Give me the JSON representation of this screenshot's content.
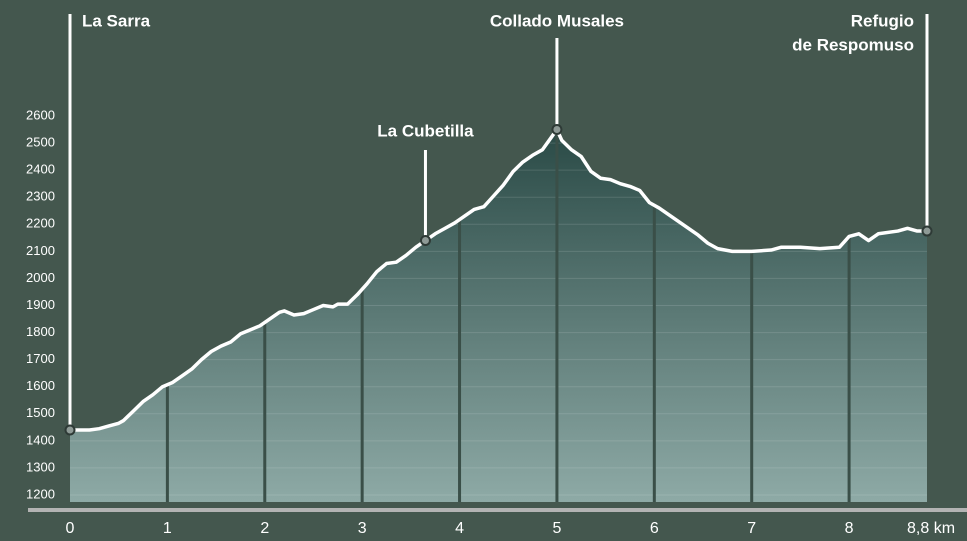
{
  "chart_data": {
    "type": "area",
    "x": [
      0,
      0.2,
      0.3,
      0.4,
      0.5,
      0.55,
      0.65,
      0.75,
      0.85,
      0.95,
      1.05,
      1.15,
      1.25,
      1.35,
      1.45,
      1.55,
      1.65,
      1.75,
      1.85,
      1.95,
      2.05,
      2.15,
      2.2,
      2.3,
      2.4,
      2.5,
      2.6,
      2.7,
      2.75,
      2.85,
      2.95,
      3.05,
      3.15,
      3.25,
      3.35,
      3.45,
      3.55,
      3.65,
      3.75,
      3.85,
      3.95,
      4.05,
      4.15,
      4.25,
      4.35,
      4.45,
      4.55,
      4.65,
      4.75,
      4.85,
      4.95,
      5.0,
      5.05,
      5.15,
      5.25,
      5.35,
      5.45,
      5.55,
      5.65,
      5.75,
      5.85,
      5.95,
      6.05,
      6.15,
      6.25,
      6.35,
      6.45,
      6.55,
      6.65,
      6.8,
      7.0,
      7.2,
      7.3,
      7.5,
      7.7,
      7.9,
      8.0,
      8.1,
      8.2,
      8.3,
      8.5,
      8.6,
      8.7,
      8.8
    ],
    "values": [
      1440,
      1440,
      1445,
      1455,
      1465,
      1475,
      1510,
      1545,
      1570,
      1600,
      1615,
      1640,
      1665,
      1700,
      1730,
      1750,
      1765,
      1795,
      1810,
      1825,
      1850,
      1875,
      1880,
      1865,
      1870,
      1885,
      1900,
      1895,
      1905,
      1905,
      1940,
      1980,
      2025,
      2055,
      2060,
      2085,
      2115,
      2140,
      2165,
      2185,
      2205,
      2230,
      2255,
      2265,
      2305,
      2345,
      2395,
      2430,
      2455,
      2475,
      2525,
      2550,
      2510,
      2475,
      2450,
      2395,
      2370,
      2365,
      2350,
      2340,
      2325,
      2280,
      2260,
      2235,
      2210,
      2185,
      2160,
      2130,
      2110,
      2100,
      2100,
      2105,
      2115,
      2115,
      2110,
      2115,
      2155,
      2165,
      2140,
      2165,
      2175,
      2185,
      2175,
      2175
    ],
    "color": "#ffffff",
    "xlim": [
      0,
      8.8
    ],
    "xticks": [
      0,
      1,
      2,
      3,
      4,
      5,
      6,
      7,
      8,
      {
        "value": 8.8,
        "label": "8,8 km"
      }
    ],
    "ylim": [
      1200,
      2600
    ],
    "yticks": [
      1200,
      1300,
      1400,
      1500,
      1600,
      1700,
      1800,
      1900,
      2000,
      2100,
      2200,
      2300,
      2400,
      2500,
      2600
    ],
    "grid": true,
    "annotations": [
      {
        "label": [
          "La Sarra"
        ],
        "x": 0,
        "y": 1440
      },
      {
        "label": [
          "La Cubetilla"
        ],
        "x": 3.65,
        "y": 2140
      },
      {
        "label": [
          "Collado Musales"
        ],
        "x": 5.0,
        "y": 2550
      },
      {
        "label": [
          "Refugio",
          "de Respomuso"
        ],
        "x": 8.8,
        "y": 2175
      }
    ]
  }
}
